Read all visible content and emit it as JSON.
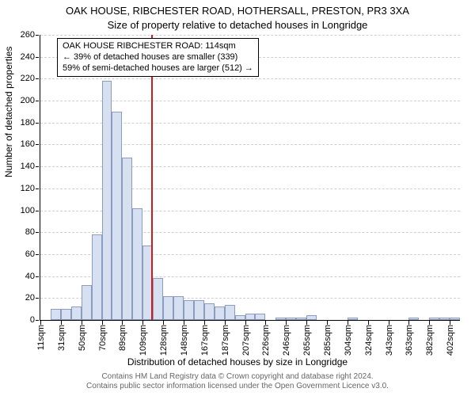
{
  "titles": {
    "line1": "OAK HOUSE, RIBCHESTER ROAD, HOTHERSALL, PRESTON, PR3 3XA",
    "line2": "Size of property relative to detached houses in Longridge"
  },
  "axes": {
    "ylabel": "Number of detached properties",
    "xlabel": "Distribution of detached houses by size in Longridge",
    "ylim": [
      0,
      260
    ],
    "ytick_step": 20,
    "grid_color": "#cfcfcf",
    "axis_color": "#000000"
  },
  "histogram": {
    "type": "histogram",
    "bar_color": "#d6e0f0",
    "bar_border": "#8a9cc0",
    "x_tick_labels": [
      "11sqm",
      "31sqm",
      "50sqm",
      "70sqm",
      "89sqm",
      "109sqm",
      "128sqm",
      "148sqm",
      "167sqm",
      "187sqm",
      "207sqm",
      "226sqm",
      "246sqm",
      "265sqm",
      "285sqm",
      "304sqm",
      "324sqm",
      "343sqm",
      "363sqm",
      "382sqm",
      "402sqm"
    ],
    "values": [
      0,
      10,
      10,
      12,
      32,
      78,
      218,
      190,
      148,
      102,
      68,
      38,
      22,
      22,
      18,
      18,
      15,
      12,
      14,
      4,
      6,
      6,
      0,
      2,
      2,
      2,
      4,
      0,
      0,
      0,
      2,
      0,
      0,
      0,
      0,
      0,
      2,
      0,
      2,
      2,
      2
    ]
  },
  "marker": {
    "color": "#d11b1b",
    "value_sqm": 114,
    "box": {
      "line1": "OAK HOUSE RIBCHESTER ROAD: 114sqm",
      "line2": "← 39% of detached houses are smaller (339)",
      "line3": "59% of semi-detached houses are larger (512) →"
    }
  },
  "footer": {
    "line1": "Contains HM Land Registry data © Crown copyright and database right 2024.",
    "line2": "Contains public sector information licensed under the Open Government Licence v3.0."
  },
  "chart_style": {
    "background_color": "#ffffff",
    "label_fontsize": 11,
    "title_fontsize": 13
  }
}
